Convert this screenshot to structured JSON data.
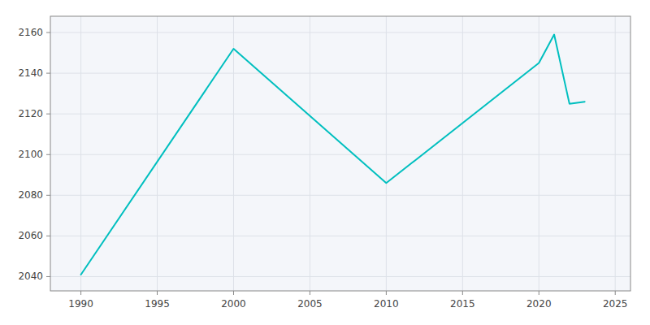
{
  "chart_data": {
    "type": "line",
    "x": [
      1990,
      2000,
      2010,
      2020,
      2021,
      2022,
      2023
    ],
    "values": [
      2041,
      2152,
      2086,
      2145,
      2159,
      2125,
      2126
    ],
    "color": "#00BFBF",
    "xlim": [
      1988,
      2026
    ],
    "ylim": [
      2033,
      2168
    ],
    "xticks": [
      1990,
      1995,
      2000,
      2005,
      2010,
      2015,
      2020,
      2025
    ],
    "yticks": [
      2040,
      2060,
      2080,
      2100,
      2120,
      2140,
      2160
    ],
    "grid": true
  }
}
